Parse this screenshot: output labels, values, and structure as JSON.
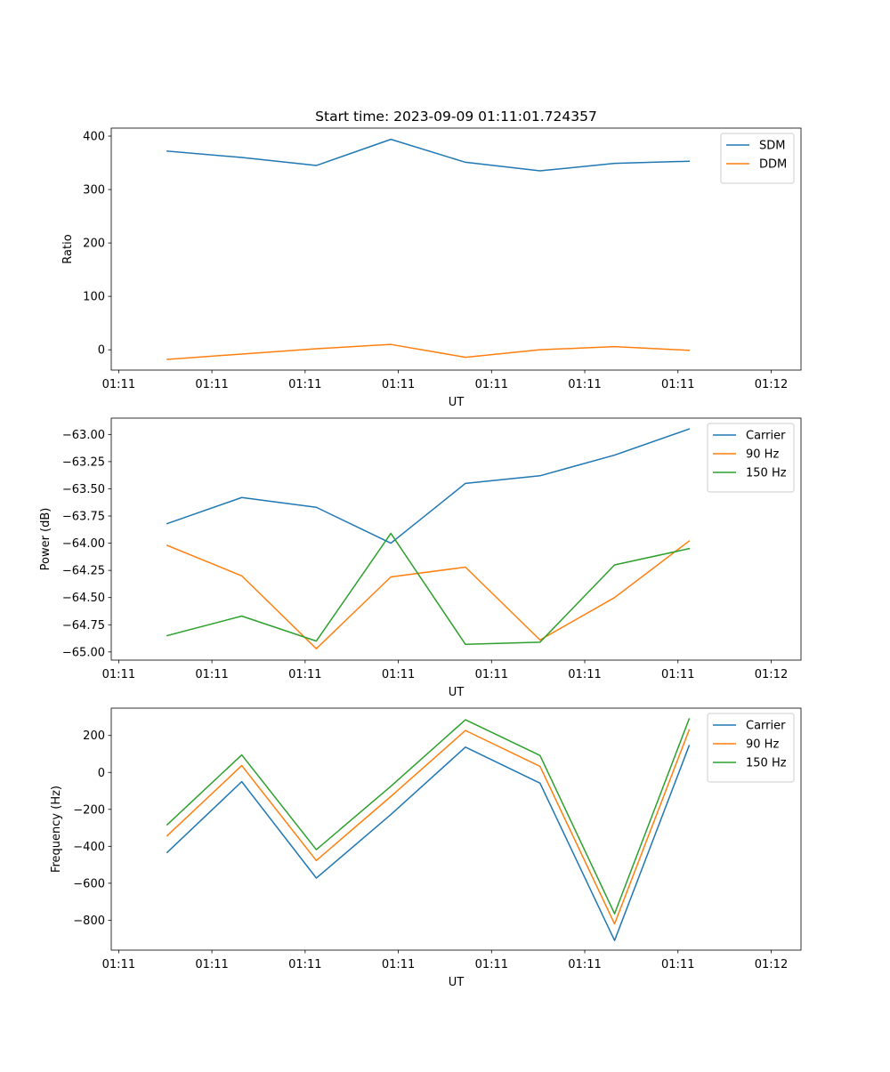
{
  "figure": {
    "title": "Start time: 2023-09-09 01:11:01.724357"
  },
  "chart_data": [
    {
      "type": "line",
      "title": "Start time: 2023-09-09 01:11:01.724357",
      "xlabel": "UT",
      "ylabel": "Ratio",
      "x_tick_labels": [
        "01:11",
        "01:11",
        "01:11",
        "01:11",
        "01:11",
        "01:11",
        "01:11",
        "01:12"
      ],
      "y_ticks": [
        0,
        100,
        200,
        300,
        400
      ],
      "y_tick_labels": [
        "0",
        "100",
        "200",
        "300",
        "400"
      ],
      "xlim": [
        0,
        9.25
      ],
      "ylim": [
        -38,
        415
      ],
      "x": [
        0.75,
        1.75,
        2.75,
        3.75,
        4.75,
        5.75,
        6.75,
        7.75
      ],
      "series": [
        {
          "name": "SDM",
          "color": "#1f77b4",
          "values": [
            372,
            360,
            345,
            394,
            351,
            335,
            349,
            353
          ]
        },
        {
          "name": "DDM",
          "color": "#ff7f0e",
          "values": [
            -18,
            -8,
            2,
            10,
            -14,
            0,
            6,
            -1
          ]
        }
      ],
      "legend": "top-right",
      "grid": false
    },
    {
      "type": "line",
      "xlabel": "UT",
      "ylabel": "Power (dB)",
      "x_tick_labels": [
        "01:11",
        "01:11",
        "01:11",
        "01:11",
        "01:11",
        "01:11",
        "01:11",
        "01:12"
      ],
      "y_ticks": [
        -65.0,
        -64.75,
        -64.5,
        -64.25,
        -64.0,
        -63.75,
        -63.5,
        -63.25,
        -63.0
      ],
      "y_tick_labels": [
        "−65.00",
        "−64.75",
        "−64.50",
        "−64.25",
        "−64.00",
        "−63.75",
        "−63.50",
        "−63.25",
        "−63.00"
      ],
      "xlim": [
        0,
        9.25
      ],
      "ylim": [
        -65.075,
        -62.85
      ],
      "x": [
        0.75,
        1.75,
        2.75,
        3.75,
        4.75,
        5.75,
        6.75,
        7.75
      ],
      "series": [
        {
          "name": "Carrier",
          "color": "#1f77b4",
          "values": [
            -63.82,
            -63.58,
            -63.67,
            -64.0,
            -63.45,
            -63.38,
            -63.19,
            -62.95
          ]
        },
        {
          "name": "90 Hz",
          "color": "#ff7f0e",
          "values": [
            -64.02,
            -64.3,
            -64.97,
            -64.31,
            -64.22,
            -64.89,
            -64.5,
            -63.98
          ]
        },
        {
          "name": "150 Hz",
          "color": "#2ca02c",
          "values": [
            -64.85,
            -64.67,
            -64.9,
            -63.91,
            -64.93,
            -64.91,
            -64.2,
            -64.05
          ]
        }
      ],
      "legend": "top-right",
      "grid": false
    },
    {
      "type": "line",
      "xlabel": "UT",
      "ylabel": "Frequency (Hz)",
      "x_tick_labels": [
        "01:11",
        "01:11",
        "01:11",
        "01:11",
        "01:11",
        "01:11",
        "01:11",
        "01:12"
      ],
      "y_ticks": [
        -800,
        -600,
        -400,
        -200,
        0,
        200
      ],
      "y_tick_labels": [
        "−800",
        "−600",
        "−400",
        "−200",
        "0",
        "200"
      ],
      "xlim": [
        0,
        9.25
      ],
      "ylim": [
        -962,
        348
      ],
      "x": [
        0.75,
        1.75,
        2.75,
        3.75,
        4.75,
        5.75,
        6.75,
        7.75
      ],
      "series": [
        {
          "name": "Carrier",
          "color": "#1f77b4",
          "values": [
            -433,
            -50,
            -572,
            -228,
            137,
            -58,
            -910,
            145
          ]
        },
        {
          "name": "90 Hz",
          "color": "#ff7f0e",
          "values": [
            -343,
            37,
            -477,
            -130,
            227,
            33,
            -820,
            230
          ]
        },
        {
          "name": "150 Hz",
          "color": "#2ca02c",
          "values": [
            -283,
            95,
            -418,
            -75,
            285,
            92,
            -765,
            290
          ]
        }
      ],
      "legend": "top-right",
      "grid": false
    }
  ]
}
